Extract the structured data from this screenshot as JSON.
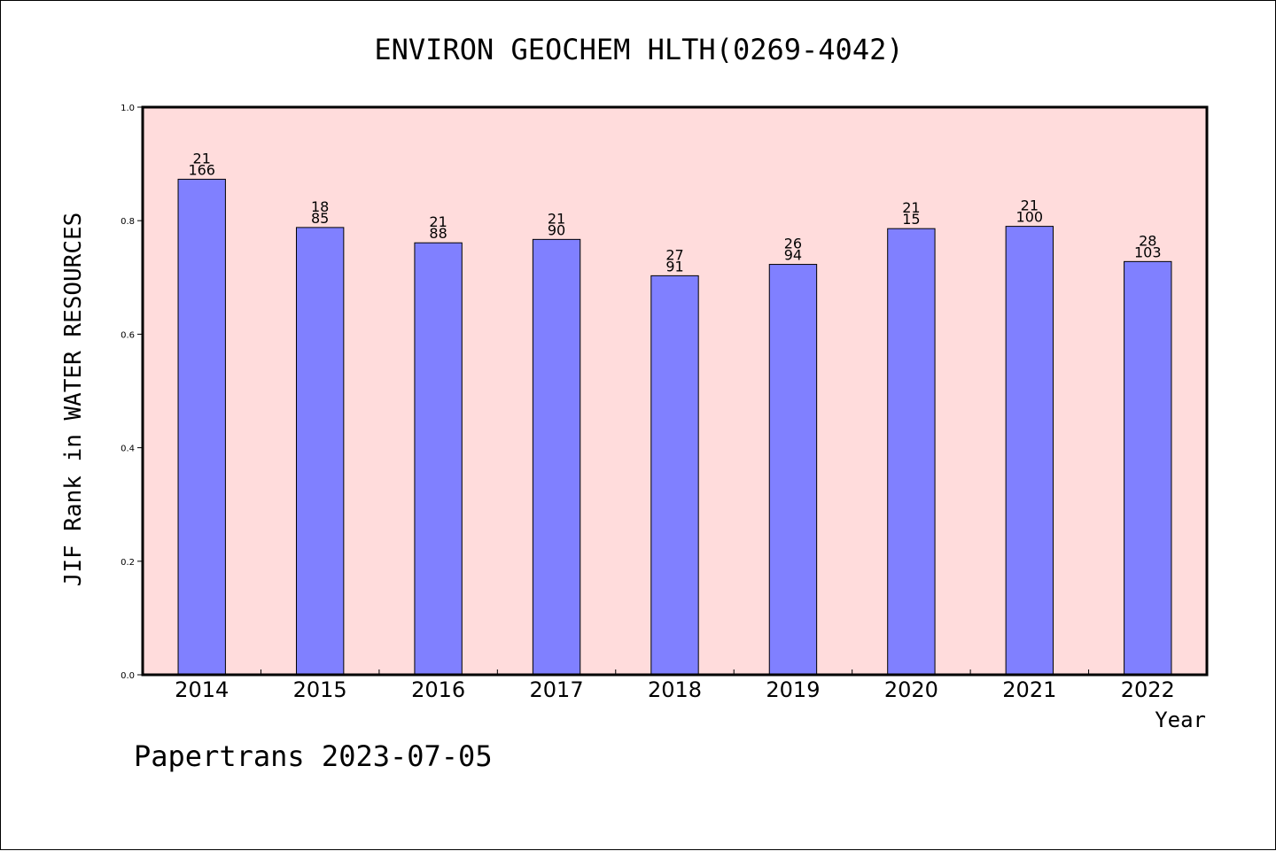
{
  "chart_data": {
    "type": "bar",
    "title": "ENVIRON GEOCHEM HLTH(0269-4042)",
    "xlabel": "Year",
    "ylabel": "JIF Rank in WATER RESOURCES",
    "ylim": [
      0,
      1.0
    ],
    "yticks": [
      "0.0",
      "0.2",
      "0.4",
      "0.6",
      "0.8",
      "1.0"
    ],
    "categories": [
      "2014",
      "2015",
      "2016",
      "2017",
      "2018",
      "2019",
      "2020",
      "2021",
      "2022"
    ],
    "values": [
      0.873,
      0.788,
      0.761,
      0.767,
      0.703,
      0.723,
      0.786,
      0.79,
      0.728
    ],
    "label_top": [
      "21",
      "18",
      "21",
      "21",
      "27",
      "26",
      "21",
      "21",
      "28"
    ],
    "label_bottom": [
      "166",
      "85",
      "88",
      "90",
      "91",
      "94",
      "15",
      "100",
      "103"
    ],
    "grid": false,
    "colors": {
      "plot_background": "#ffdcdc",
      "bar_fill": "#8080ff",
      "bar_stroke": "#000000"
    }
  },
  "footer": "Papertrans 2023-07-05"
}
